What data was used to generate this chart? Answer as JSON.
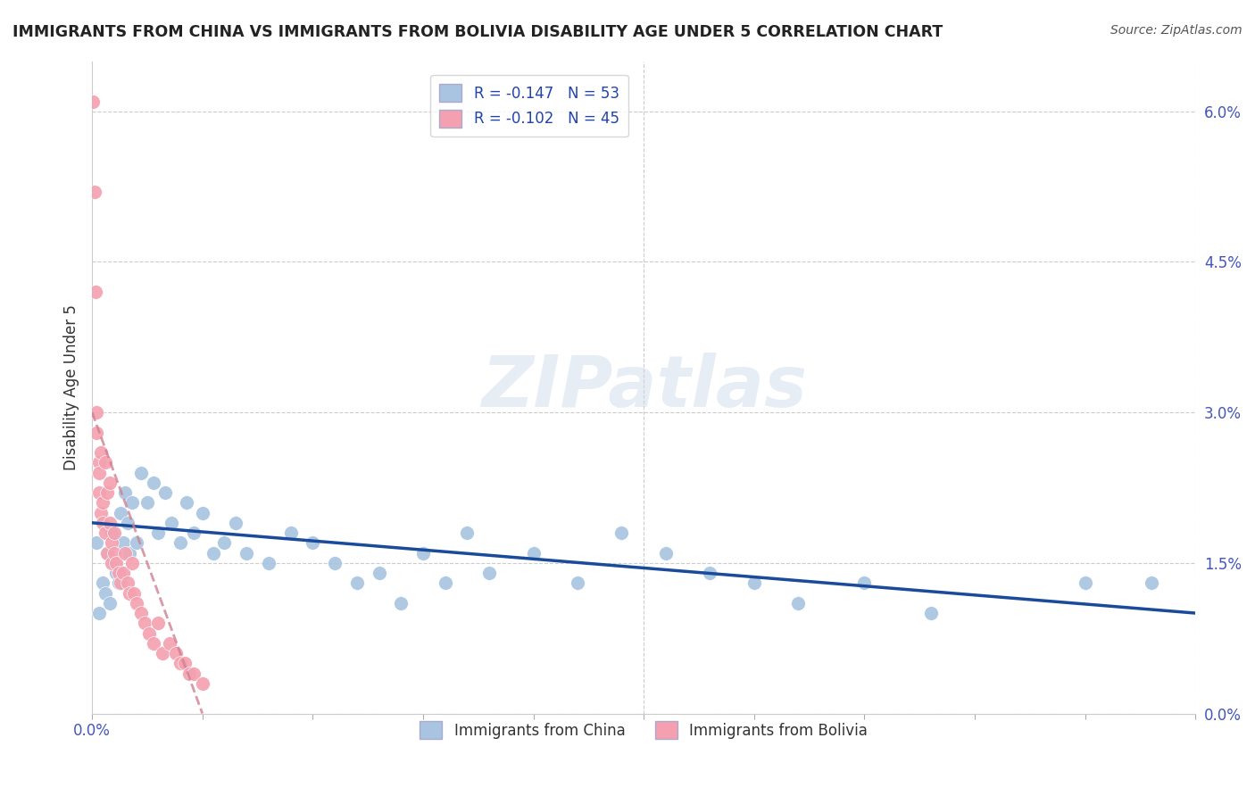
{
  "title": "IMMIGRANTS FROM CHINA VS IMMIGRANTS FROM BOLIVIA DISABILITY AGE UNDER 5 CORRELATION CHART",
  "source": "Source: ZipAtlas.com",
  "ylabel": "Disability Age Under 5",
  "xlim": [
    0.0,
    0.5
  ],
  "ylim": [
    0.0,
    0.065
  ],
  "xtick_positions": [
    0.0,
    0.05,
    0.1,
    0.15,
    0.2,
    0.25,
    0.3,
    0.35,
    0.4,
    0.45,
    0.5
  ],
  "xtick_labels_shown": {
    "0.0": "0.0%"
  },
  "yticks_right": [
    0.0,
    0.015,
    0.03,
    0.045,
    0.06
  ],
  "ytick_right_labels": [
    "0.0%",
    "1.5%",
    "3.0%",
    "4.5%",
    "6.0%"
  ],
  "legend_china": "R = -0.147   N = 53",
  "legend_bolivia": "R = -0.102   N = 45",
  "china_color": "#a8c4e0",
  "bolivia_color": "#f4a0b0",
  "china_line_color": "#1a4a9a",
  "bolivia_line_color": "#d08090",
  "background_color": "#ffffff",
  "grid_color": "#cccccc",
  "watermark": "ZIPatlas",
  "china_scatter_x": [
    0.002,
    0.003,
    0.005,
    0.006,
    0.007,
    0.008,
    0.009,
    0.01,
    0.011,
    0.012,
    0.013,
    0.014,
    0.015,
    0.016,
    0.017,
    0.018,
    0.02,
    0.022,
    0.025,
    0.028,
    0.03,
    0.033,
    0.036,
    0.04,
    0.043,
    0.046,
    0.05,
    0.055,
    0.06,
    0.065,
    0.07,
    0.08,
    0.09,
    0.1,
    0.11,
    0.12,
    0.13,
    0.14,
    0.15,
    0.16,
    0.17,
    0.18,
    0.2,
    0.22,
    0.24,
    0.26,
    0.28,
    0.3,
    0.32,
    0.35,
    0.38,
    0.45,
    0.48
  ],
  "china_scatter_y": [
    0.017,
    0.01,
    0.013,
    0.012,
    0.016,
    0.011,
    0.018,
    0.015,
    0.014,
    0.013,
    0.02,
    0.017,
    0.022,
    0.019,
    0.016,
    0.021,
    0.017,
    0.024,
    0.021,
    0.023,
    0.018,
    0.022,
    0.019,
    0.017,
    0.021,
    0.018,
    0.02,
    0.016,
    0.017,
    0.019,
    0.016,
    0.015,
    0.018,
    0.017,
    0.015,
    0.013,
    0.014,
    0.011,
    0.016,
    0.013,
    0.018,
    0.014,
    0.016,
    0.013,
    0.018,
    0.016,
    0.014,
    0.013,
    0.011,
    0.013,
    0.01,
    0.013,
    0.013
  ],
  "bolivia_scatter_x": [
    0.0005,
    0.001,
    0.0015,
    0.002,
    0.002,
    0.003,
    0.003,
    0.003,
    0.004,
    0.004,
    0.005,
    0.005,
    0.006,
    0.006,
    0.007,
    0.007,
    0.008,
    0.008,
    0.009,
    0.009,
    0.01,
    0.01,
    0.011,
    0.012,
    0.013,
    0.014,
    0.015,
    0.016,
    0.017,
    0.018,
    0.019,
    0.02,
    0.022,
    0.024,
    0.026,
    0.028,
    0.03,
    0.032,
    0.035,
    0.038,
    0.04,
    0.042,
    0.044,
    0.046,
    0.05
  ],
  "bolivia_scatter_y": [
    0.061,
    0.052,
    0.042,
    0.03,
    0.028,
    0.025,
    0.022,
    0.024,
    0.02,
    0.026,
    0.019,
    0.021,
    0.025,
    0.018,
    0.022,
    0.016,
    0.019,
    0.023,
    0.017,
    0.015,
    0.018,
    0.016,
    0.015,
    0.014,
    0.013,
    0.014,
    0.016,
    0.013,
    0.012,
    0.015,
    0.012,
    0.011,
    0.01,
    0.009,
    0.008,
    0.007,
    0.009,
    0.006,
    0.007,
    0.006,
    0.005,
    0.005,
    0.004,
    0.004,
    0.003
  ]
}
